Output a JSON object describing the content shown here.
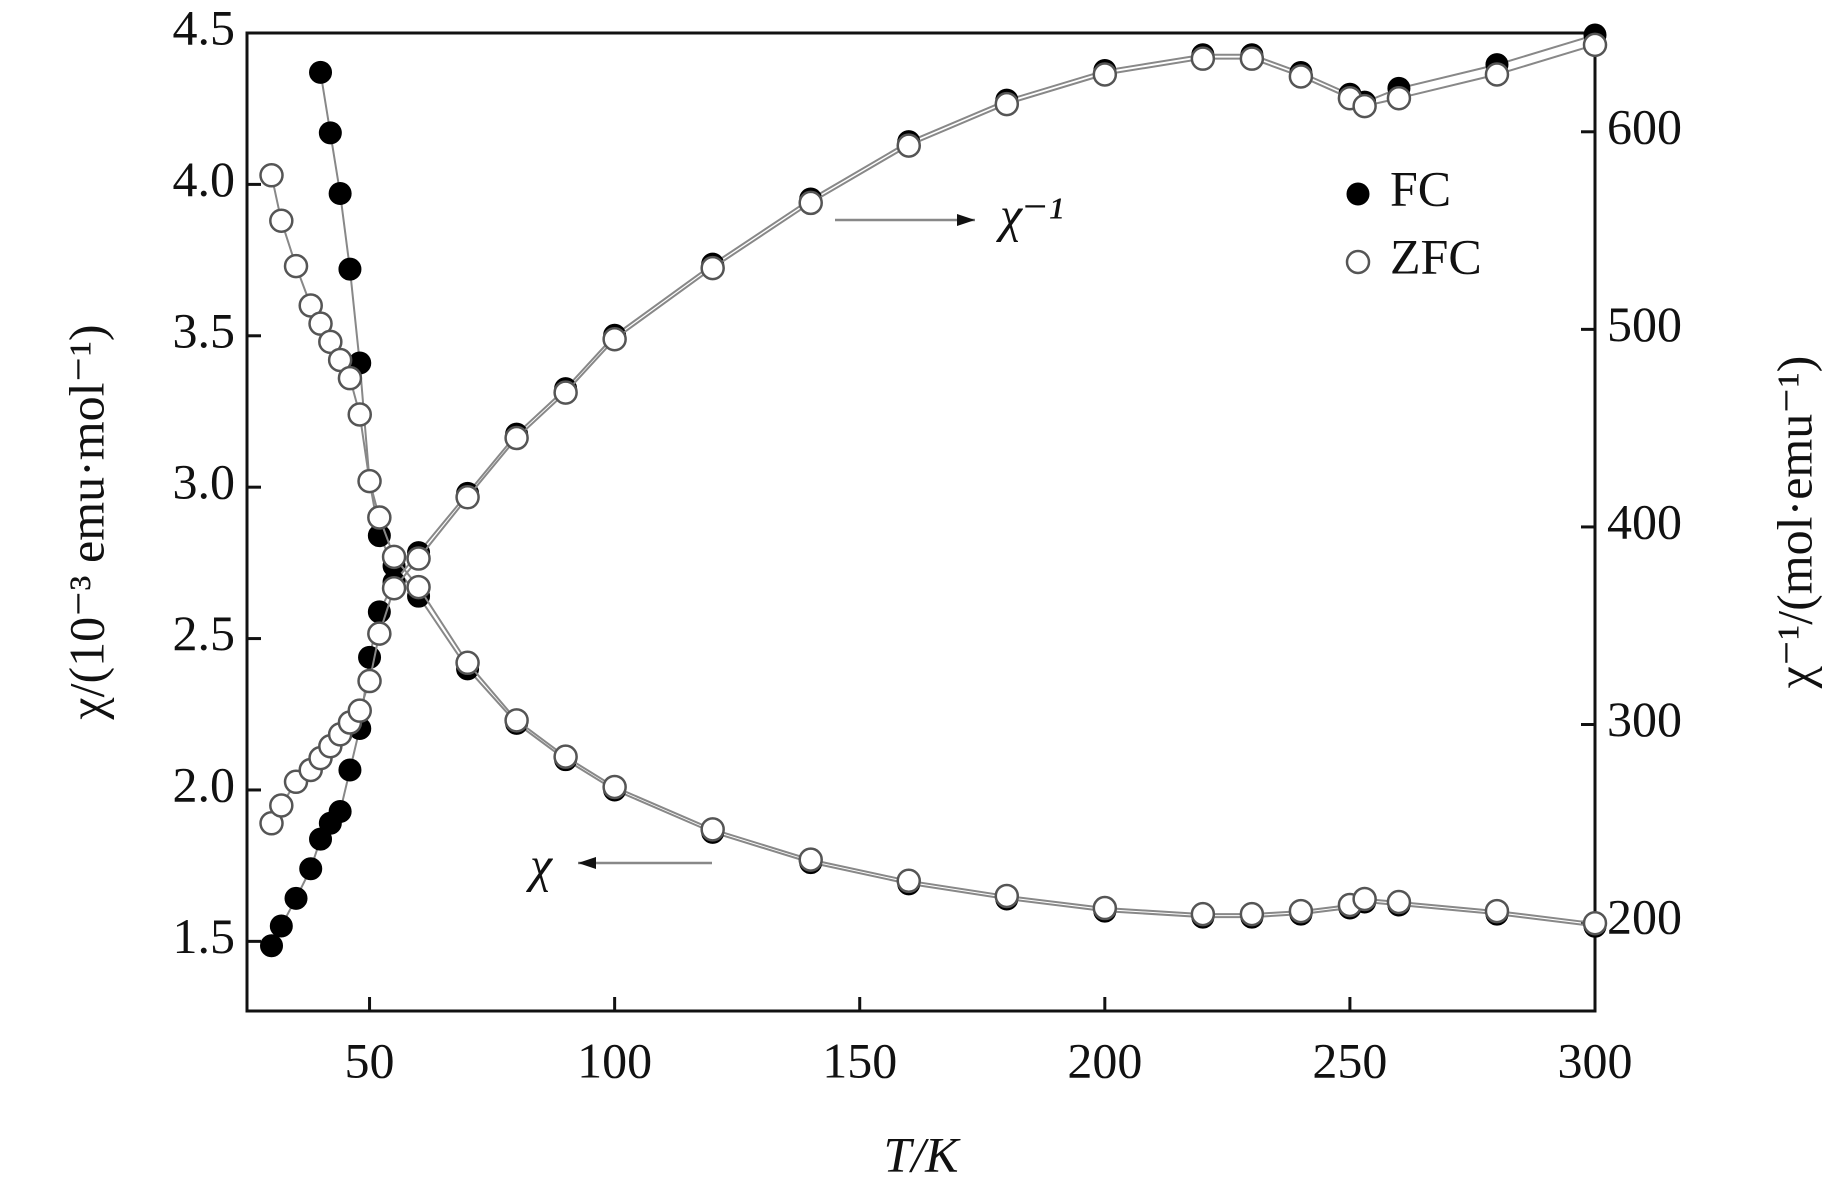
{
  "chart_data": {
    "type": "scatter",
    "x_label": "T/K",
    "y_label": "χ/(10⁻³ emu·mol⁻¹)",
    "y2_label": "χ⁻¹/(mol·emu⁻¹)",
    "annotations": [
      "χ⁻¹",
      "χ"
    ],
    "x": [
      30,
      32,
      35,
      38,
      40,
      42,
      44,
      46,
      48,
      50,
      52,
      55,
      60,
      70,
      80,
      90,
      100,
      120,
      140,
      160,
      180,
      200,
      220,
      230,
      240,
      250,
      253,
      260,
      280,
      300
    ],
    "series": [
      {
        "name": "FC",
        "color": "#000000",
        "marker": "filled",
        "values": [
          null,
          null,
          null,
          null,
          4.37,
          4.17,
          3.97,
          3.72,
          3.41,
          3.02,
          2.84,
          2.74,
          2.64,
          2.4,
          2.22,
          2.1,
          2.0,
          1.86,
          1.76,
          1.69,
          1.64,
          1.6,
          1.58,
          1.58,
          1.59,
          1.61,
          1.63,
          1.62,
          1.59,
          1.55
        ]
      },
      {
        "name": "ZFC",
        "color": "#555555",
        "marker": "open",
        "values": [
          4.03,
          3.88,
          3.73,
          3.6,
          3.54,
          3.48,
          3.42,
          3.36,
          3.24,
          3.02,
          2.9,
          2.77,
          2.67,
          2.42,
          2.23,
          2.11,
          2.01,
          1.87,
          1.77,
          1.7,
          1.65,
          1.61,
          1.59,
          1.59,
          1.6,
          1.62,
          1.64,
          1.63,
          1.6,
          1.56
        ]
      },
      {
        "name": "FC",
        "color": "#000000",
        "marker": "filled",
        "axis": "y2",
        "values": [
          188,
          198,
          212,
          227,
          242,
          250,
          256,
          277,
          298,
          334,
          357,
          372,
          387,
          417,
          447,
          470,
          497,
          533,
          566,
          595,
          616,
          631,
          639,
          639,
          630,
          619,
          615,
          622,
          634,
          649
        ]
      },
      {
        "name": "ZFC",
        "color": "#555555",
        "marker": "open",
        "axis": "y2",
        "values": [
          250,
          259,
          271,
          277,
          283,
          289,
          295,
          301,
          307,
          322,
          346,
          369,
          384,
          415,
          445,
          468,
          495,
          531,
          564,
          593,
          614,
          629,
          637,
          637,
          628,
          617,
          613,
          617,
          629,
          644
        ]
      }
    ],
    "xlim": [
      25,
      300
    ],
    "xticks": [
      50,
      100,
      150,
      200,
      250,
      300
    ],
    "ylim": [
      1.27,
      4.5
    ],
    "yticks": [
      1.5,
      {
        "value": 2,
        "label": "2.0"
      },
      2.5,
      {
        "value": 3,
        "label": "3.0"
      },
      3.5,
      {
        "value": 4,
        "label": "4.0"
      },
      4.5
    ],
    "y2lim": [
      155,
      650
    ],
    "y2ticks": [
      200,
      300,
      400,
      500,
      600
    ]
  }
}
